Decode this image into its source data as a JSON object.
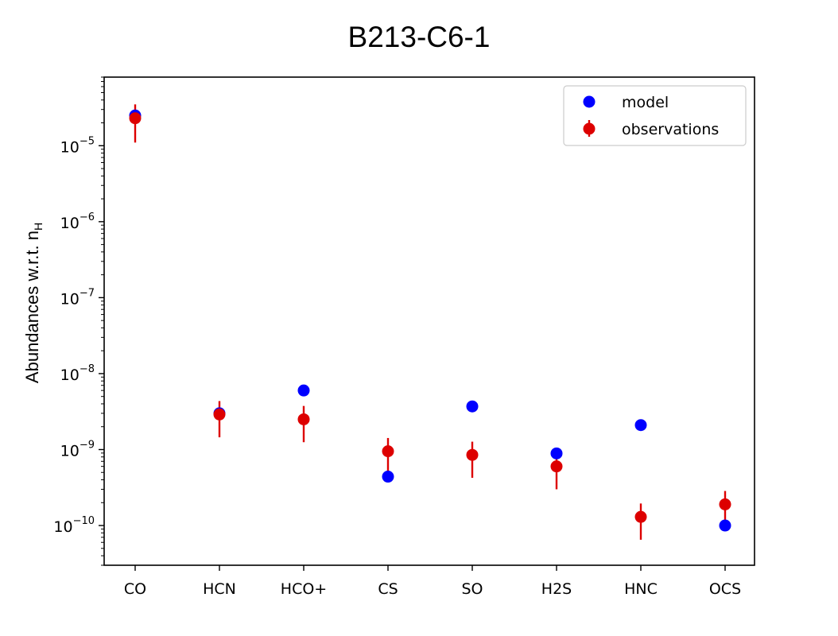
{
  "chart_data": {
    "type": "scatter",
    "title": "B213-C6-1",
    "ylabel": "Abundances w.r.t. n",
    "ylabel_subscript": "H",
    "yscale": "log",
    "ylim": [
      3e-11,
      8e-05
    ],
    "yticks": [
      {
        "value": 1e-05,
        "mantissa": "10",
        "exp": "−5"
      },
      {
        "value": 1e-06,
        "mantissa": "10",
        "exp": "−6"
      },
      {
        "value": 1e-07,
        "mantissa": "10",
        "exp": "−7"
      },
      {
        "value": 1e-08,
        "mantissa": "10",
        "exp": "−8"
      },
      {
        "value": 1e-09,
        "mantissa": "10",
        "exp": "−9"
      },
      {
        "value": 1e-10,
        "mantissa": "10",
        "exp": "−10"
      }
    ],
    "categories": [
      "CO",
      "HCN",
      "HCO+",
      "CS",
      "SO",
      "H2S",
      "HNC",
      "OCS"
    ],
    "series": [
      {
        "name": "model",
        "color": "#0000ff",
        "values": [
          2.5e-05,
          3e-09,
          6e-09,
          4.4e-10,
          3.7e-09,
          8.9e-10,
          2.1e-09,
          1e-10
        ]
      },
      {
        "name": "observations",
        "color": "#dd0000",
        "values": [
          2.3e-05,
          2.9e-09,
          2.5e-09,
          9.5e-10,
          8.5e-10,
          6e-10,
          1.3e-10,
          1.9e-10
        ],
        "err_low": [
          1.1e-05,
          1.45e-09,
          1.25e-09,
          4.7e-10,
          4.25e-10,
          3e-10,
          6.5e-11,
          9.5e-11
        ],
        "err_high": [
          3.5e-05,
          4.35e-09,
          3.75e-09,
          1.42e-09,
          1.27e-09,
          9e-10,
          1.95e-10,
          2.85e-10
        ]
      }
    ],
    "legend": {
      "placement": "top-right",
      "entries": [
        "model",
        "observations"
      ]
    },
    "grid": false
  }
}
